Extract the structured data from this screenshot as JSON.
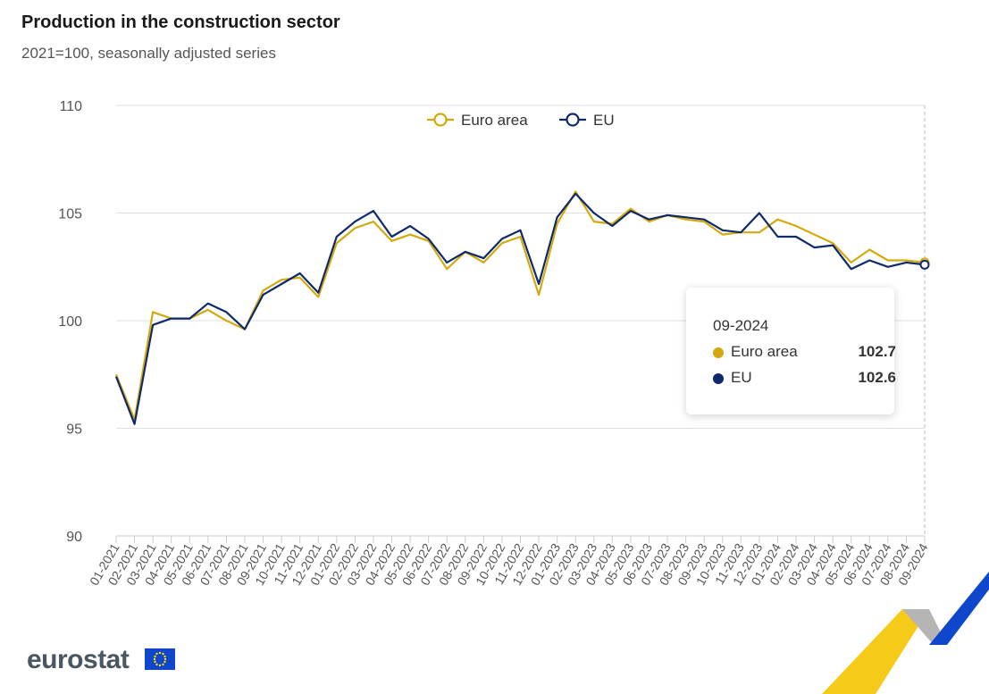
{
  "chart_data": {
    "type": "line",
    "title": "Production in the construction sector",
    "subtitle": "2021=100, seasonally adjusted series",
    "xlabel": "",
    "ylabel": "",
    "ylim": [
      90,
      110
    ],
    "yticks": [
      90,
      95,
      100,
      105,
      110
    ],
    "grid": true,
    "legend_position": "top-center",
    "x": [
      "01-2021",
      "02-2021",
      "03-2021",
      "04-2021",
      "05-2021",
      "06-2021",
      "07-2021",
      "08-2021",
      "09-2021",
      "10-2021",
      "11-2021",
      "12-2021",
      "01-2022",
      "02-2022",
      "03-2022",
      "04-2022",
      "05-2022",
      "06-2022",
      "07-2022",
      "08-2022",
      "09-2022",
      "10-2022",
      "11-2022",
      "12-2022",
      "01-2023",
      "02-2023",
      "03-2023",
      "04-2023",
      "05-2023",
      "06-2023",
      "07-2023",
      "08-2023",
      "09-2023",
      "10-2023",
      "11-2023",
      "12-2023",
      "01-2024",
      "02-2024",
      "03-2024",
      "04-2024",
      "05-2024",
      "06-2024",
      "07-2024",
      "08-2024",
      "09-2024"
    ],
    "series": [
      {
        "name": "Euro area",
        "color": "#d4a90f",
        "values": [
          97.5,
          95.4,
          100.4,
          100.1,
          100.1,
          100.5,
          100.0,
          99.6,
          101.4,
          101.9,
          102.0,
          101.1,
          103.6,
          104.3,
          104.6,
          103.7,
          104.0,
          103.7,
          102.4,
          103.2,
          102.7,
          103.6,
          103.9,
          101.2,
          104.5,
          106.0,
          104.6,
          104.5,
          105.2,
          104.6,
          104.9,
          104.7,
          104.6,
          104.0,
          104.1,
          104.1,
          104.7,
          104.4,
          104.0,
          103.6,
          102.7,
          103.3,
          102.8,
          102.8,
          102.7
        ]
      },
      {
        "name": "EU",
        "color": "#0e2a6b",
        "values": [
          97.4,
          95.2,
          99.8,
          100.1,
          100.1,
          100.8,
          100.4,
          99.6,
          101.2,
          101.7,
          102.2,
          101.3,
          103.9,
          104.6,
          105.1,
          103.9,
          104.4,
          103.8,
          102.7,
          103.2,
          102.9,
          103.8,
          104.2,
          101.7,
          104.8,
          105.9,
          105.0,
          104.4,
          105.1,
          104.7,
          104.9,
          104.8,
          104.7,
          104.2,
          104.1,
          105.0,
          103.9,
          103.9,
          103.4,
          103.5,
          102.4,
          102.8,
          102.5,
          102.7,
          102.6
        ]
      }
    ]
  },
  "tooltip": {
    "date": "09-2024",
    "rows": [
      {
        "label": "Euro area",
        "value": "102.7",
        "color": "#d4a90f"
      },
      {
        "label": "EU",
        "value": "102.6",
        "color": "#0e2a6b"
      }
    ]
  },
  "branding": {
    "logo_text": "eurostat",
    "flag_color": "#0e47cb",
    "decoration_colors": [
      "#f5c400",
      "#0e47cb",
      "#b5b5b5"
    ]
  }
}
